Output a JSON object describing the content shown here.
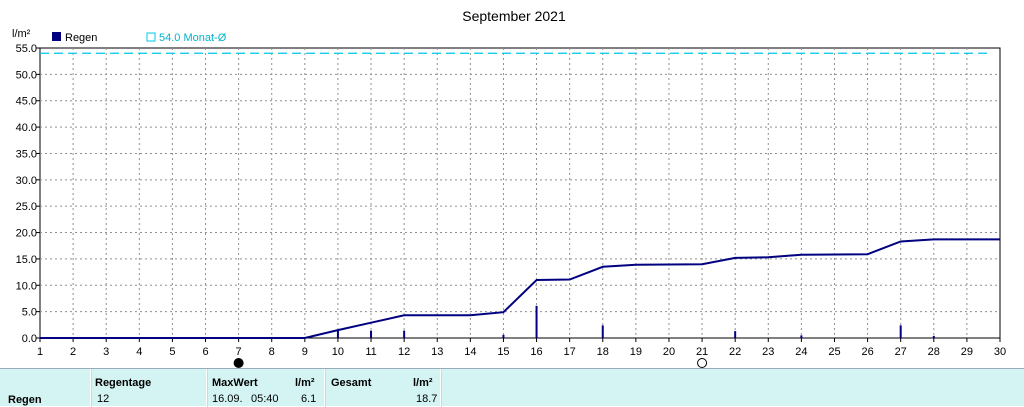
{
  "chart_data": {
    "type": "line",
    "title": "September 2021",
    "ylabel": "l/m²",
    "xlabel": "",
    "xlim": [
      1,
      30
    ],
    "ylim": [
      0,
      55
    ],
    "x_ticks": [
      "1",
      "2",
      "3",
      "4",
      "5",
      "6",
      "7",
      "8",
      "9",
      "10",
      "11",
      "12",
      "13",
      "14",
      "15",
      "16",
      "17",
      "18",
      "19",
      "20",
      "21",
      "22",
      "23",
      "24",
      "25",
      "26",
      "27",
      "28",
      "29",
      "30"
    ],
    "y_ticks": [
      "0.0",
      "5.0",
      "10.0",
      "15.0",
      "20.0",
      "25.0",
      "30.0",
      "35.0",
      "40.0",
      "45.0",
      "50.0",
      "55.0"
    ],
    "grid": true,
    "legend": [
      {
        "label": "Regen",
        "color": "#000080",
        "marker": "square-filled"
      },
      {
        "label": "54.0 Monat-Ø",
        "color": "#00c8e6",
        "marker": "square-open"
      }
    ],
    "reference_line": {
      "label": "54.0 Monat-Ø",
      "value": 54.0,
      "color": "#00c8e6",
      "style": "dashed"
    },
    "series": [
      {
        "name": "Regen",
        "type": "cumulative-line",
        "color": "#000080",
        "points": [
          [
            1,
            0
          ],
          [
            9,
            0
          ],
          [
            10,
            1.5
          ],
          [
            11,
            2.9
          ],
          [
            12,
            4.3
          ],
          [
            14,
            4.3
          ],
          [
            15,
            4.9
          ],
          [
            16,
            11.0
          ],
          [
            17,
            11.1
          ],
          [
            18,
            13.5
          ],
          [
            19,
            13.9
          ],
          [
            21,
            14.0
          ],
          [
            22,
            15.2
          ],
          [
            23,
            15.3
          ],
          [
            24,
            15.8
          ],
          [
            26,
            15.9
          ],
          [
            27,
            18.3
          ],
          [
            28,
            18.7
          ],
          [
            30,
            18.7
          ]
        ]
      },
      {
        "name": "Regen",
        "type": "bar",
        "color": "#000080",
        "bars": [
          [
            7,
            0.2
          ],
          [
            10,
            1.4
          ],
          [
            11,
            1.4
          ],
          [
            12,
            1.4
          ],
          [
            15,
            0.6
          ],
          [
            16,
            6.1
          ],
          [
            18,
            2.4
          ],
          [
            22,
            1.3
          ],
          [
            24,
            0.5
          ],
          [
            27,
            2.4
          ],
          [
            28,
            0.4
          ]
        ]
      }
    ],
    "moon_markers": [
      {
        "x": 7,
        "phase": "new"
      },
      {
        "x": 21,
        "phase": "full"
      }
    ]
  },
  "summary": {
    "row_label": "Regen",
    "headers": {
      "days": "Regentage",
      "max": "MaxWert",
      "unit1": "l/m²",
      "total": "Gesamt",
      "unit2": "l/m²"
    },
    "values": {
      "days": "12",
      "max_date": "16.09.",
      "max_time": "05:40",
      "max_value": "6.1",
      "total": "18.7"
    }
  }
}
